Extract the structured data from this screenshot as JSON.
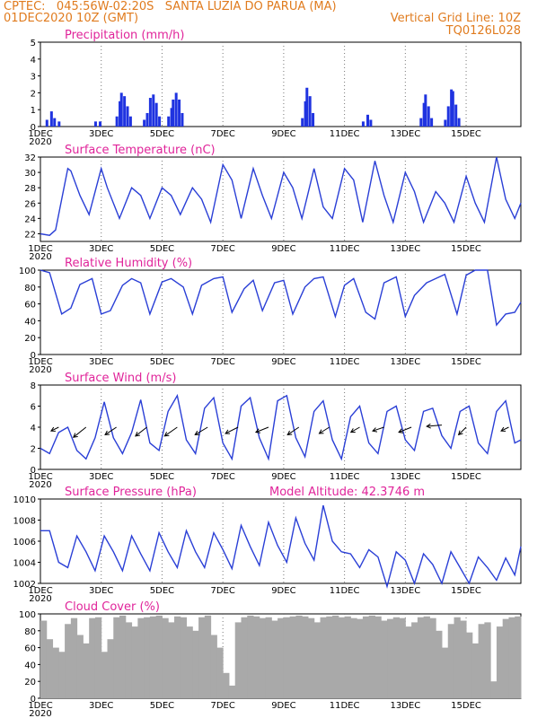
{
  "header": {
    "line1": "CPTEC:   045:56W-02:20S   SANTA LUZIA DO PARUA (MA)",
    "line2": "01DEC2020 10Z (GMT)",
    "grid_note": "Vertical Grid Line: 10Z",
    "run_code": "TQ0126L028"
  },
  "xaxis": {
    "ticks": [
      {
        "label": "1DEC",
        "day": 0
      },
      {
        "label": "3DEC",
        "day": 2
      },
      {
        "label": "5DEC",
        "day": 4
      },
      {
        "label": "7DEC",
        "day": 6
      },
      {
        "label": "9DEC",
        "day": 8
      },
      {
        "label": "11DEC",
        "day": 10
      },
      {
        "label": "13DEC",
        "day": 12
      },
      {
        "label": "15DEC",
        "day": 14
      }
    ],
    "year_label": "2020",
    "range_days": [
      0,
      15.8
    ]
  },
  "colors": {
    "line": "#2a3fd6",
    "bar": "#1f33e0",
    "cloud": "#a9a9a9",
    "title": "#e0249a",
    "header": "#e07b1e",
    "grid": "#777777"
  },
  "chart_data": [
    {
      "type": "bar",
      "id": "precip",
      "title": "Precipitation (mm/h)",
      "ylim": [
        0,
        5
      ],
      "yticks": [
        0,
        1,
        2,
        3,
        4,
        5
      ],
      "bars": [
        [
          0.2,
          0.4
        ],
        [
          0.35,
          0.9
        ],
        [
          0.45,
          0.5
        ],
        [
          0.6,
          0.3
        ],
        [
          1.8,
          0.3
        ],
        [
          1.95,
          0.3
        ],
        [
          2.5,
          0.6
        ],
        [
          2.6,
          1.5
        ],
        [
          2.65,
          2.0
        ],
        [
          2.75,
          1.8
        ],
        [
          2.85,
          1.2
        ],
        [
          2.95,
          0.6
        ],
        [
          3.4,
          0.4
        ],
        [
          3.5,
          0.8
        ],
        [
          3.6,
          1.7
        ],
        [
          3.7,
          1.9
        ],
        [
          3.8,
          1.4
        ],
        [
          3.9,
          0.6
        ],
        [
          4.2,
          0.6
        ],
        [
          4.3,
          1.1
        ],
        [
          4.35,
          1.6
        ],
        [
          4.45,
          2.0
        ],
        [
          4.55,
          1.6
        ],
        [
          4.65,
          0.8
        ],
        [
          8.6,
          0.5
        ],
        [
          8.7,
          1.5
        ],
        [
          8.75,
          2.3
        ],
        [
          8.85,
          1.8
        ],
        [
          8.95,
          0.8
        ],
        [
          10.6,
          0.3
        ],
        [
          10.75,
          0.7
        ],
        [
          10.85,
          0.4
        ],
        [
          12.5,
          0.5
        ],
        [
          12.6,
          1.4
        ],
        [
          12.65,
          1.9
        ],
        [
          12.75,
          1.2
        ],
        [
          12.85,
          0.5
        ],
        [
          13.3,
          0.4
        ],
        [
          13.4,
          1.2
        ],
        [
          13.5,
          2.2
        ],
        [
          13.55,
          2.1
        ],
        [
          13.65,
          1.3
        ],
        [
          13.75,
          0.5
        ]
      ]
    },
    {
      "type": "line",
      "id": "temp",
      "title": "Surface Temperature (nC)",
      "ylim": [
        21,
        32
      ],
      "yticks": [
        22,
        24,
        26,
        28,
        30,
        32
      ],
      "x": [
        0,
        0.3,
        0.5,
        0.9,
        1.0,
        1.3,
        1.6,
        2.0,
        2.2,
        2.6,
        3.0,
        3.3,
        3.6,
        4.0,
        4.3,
        4.6,
        5.0,
        5.3,
        5.6,
        6.0,
        6.3,
        6.6,
        7.0,
        7.3,
        7.6,
        8.0,
        8.3,
        8.6,
        9.0,
        9.3,
        9.6,
        10.0,
        10.3,
        10.6,
        11.0,
        11.3,
        11.6,
        12.0,
        12.3,
        12.6,
        13.0,
        13.3,
        13.6,
        14.0,
        14.3,
        14.6,
        15.0,
        15.3,
        15.6,
        15.8
      ],
      "y": [
        22,
        21.8,
        22.5,
        30.5,
        30.2,
        27,
        24.5,
        30.5,
        28,
        24,
        28,
        27,
        24,
        28,
        27,
        24.5,
        28,
        26.5,
        23.5,
        31,
        29,
        24,
        30.5,
        27,
        24,
        30,
        28,
        24,
        30.5,
        25.5,
        24,
        30.5,
        29,
        23.5,
        31.5,
        27,
        23.5,
        30,
        27.5,
        23.5,
        27.5,
        26,
        23.5,
        29.5,
        26,
        23.5,
        32,
        26.5,
        24,
        26
      ]
    },
    {
      "type": "line",
      "id": "rh",
      "title": "Relative Humidity (%)",
      "ylim": [
        0,
        100
      ],
      "yticks": [
        0,
        20,
        40,
        60,
        80,
        100
      ],
      "x": [
        0,
        0.3,
        0.7,
        1.0,
        1.3,
        1.7,
        2.0,
        2.3,
        2.7,
        3.0,
        3.3,
        3.6,
        4.0,
        4.3,
        4.7,
        5.0,
        5.3,
        5.7,
        6.0,
        6.3,
        6.7,
        7.0,
        7.3,
        7.7,
        8.0,
        8.3,
        8.7,
        9.0,
        9.3,
        9.7,
        10.0,
        10.3,
        10.7,
        11.0,
        11.3,
        11.7,
        12.0,
        12.3,
        12.7,
        13.0,
        13.3,
        13.7,
        14.0,
        14.3,
        14.7,
        15.0,
        15.3,
        15.6,
        15.8
      ],
      "y": [
        100,
        97,
        48,
        55,
        83,
        90,
        48,
        52,
        82,
        90,
        85,
        48,
        86,
        90,
        80,
        48,
        82,
        90,
        92,
        50,
        78,
        88,
        52,
        85,
        88,
        48,
        80,
        90,
        92,
        45,
        82,
        90,
        50,
        42,
        85,
        92,
        45,
        70,
        85,
        90,
        95,
        48,
        94,
        100,
        100,
        35,
        48,
        50,
        62
      ]
    },
    {
      "type": "line",
      "id": "wind",
      "title": "Surface Wind (m/s)",
      "ylim": [
        0,
        8
      ],
      "yticks": [
        0,
        2,
        4,
        6,
        8
      ],
      "x": [
        0,
        0.3,
        0.6,
        0.9,
        1.2,
        1.5,
        1.8,
        2.1,
        2.4,
        2.7,
        3.0,
        3.3,
        3.6,
        3.9,
        4.2,
        4.5,
        4.8,
        5.1,
        5.4,
        5.7,
        6.0,
        6.3,
        6.6,
        6.9,
        7.2,
        7.5,
        7.8,
        8.1,
        8.4,
        8.7,
        9.0,
        9.3,
        9.6,
        9.9,
        10.2,
        10.5,
        10.8,
        11.1,
        11.4,
        11.7,
        12.0,
        12.3,
        12.6,
        12.9,
        13.2,
        13.5,
        13.8,
        14.1,
        14.4,
        14.7,
        15.0,
        15.3,
        15.6,
        15.8
      ],
      "y": [
        2,
        1.5,
        3.5,
        4,
        1.8,
        1,
        3,
        6.4,
        3,
        1.5,
        3.5,
        6.6,
        2.5,
        1.8,
        5.5,
        7,
        2.8,
        1.5,
        5.8,
        6.8,
        2.5,
        1,
        6,
        6.8,
        3,
        1,
        6.5,
        7,
        3,
        1.2,
        5.5,
        6.5,
        2.8,
        1,
        5,
        6,
        2.5,
        1.5,
        5.5,
        6,
        2.8,
        1.8,
        5.5,
        5.8,
        3.2,
        2,
        5.5,
        6,
        2.5,
        1.5,
        5.5,
        6.5,
        2.5,
        2.8
      ],
      "arrows": [
        [
          0.6,
          4.0,
          -0.6,
          -0.3
        ],
        [
          1.5,
          4.0,
          -1,
          -0.8
        ],
        [
          2.5,
          4.0,
          -0.9,
          -0.6
        ],
        [
          3.5,
          4.0,
          -0.9,
          -0.7
        ],
        [
          4.5,
          4.0,
          -1,
          -0.7
        ],
        [
          5.5,
          4.0,
          -1,
          -0.6
        ],
        [
          6.5,
          4.0,
          -1,
          -0.5
        ],
        [
          7.5,
          4.0,
          -1,
          -0.4
        ],
        [
          8.5,
          4.0,
          -0.9,
          -0.6
        ],
        [
          9.5,
          4.0,
          -0.8,
          -0.5
        ],
        [
          10.5,
          4.0,
          -0.7,
          -0.4
        ],
        [
          11.3,
          4.0,
          -0.9,
          -0.3
        ],
        [
          12.2,
          4.0,
          -1,
          -0.4
        ],
        [
          13.2,
          4.2,
          -1.2,
          -0.1
        ],
        [
          14.0,
          4.0,
          -0.6,
          -0.6
        ],
        [
          15.4,
          4.0,
          -0.6,
          -0.3
        ]
      ]
    },
    {
      "type": "line",
      "id": "press",
      "title": "Surface Pressure (hPa)",
      "subtitle": "Model Altitude: 42.3746 m",
      "ylim": [
        1002,
        1010
      ],
      "yticks": [
        1002,
        1004,
        1006,
        1008,
        1010
      ],
      "x": [
        0,
        0.3,
        0.6,
        0.9,
        1.2,
        1.5,
        1.8,
        2.1,
        2.4,
        2.7,
        3.0,
        3.3,
        3.6,
        3.9,
        4.2,
        4.5,
        4.8,
        5.1,
        5.4,
        5.7,
        6.0,
        6.3,
        6.6,
        6.9,
        7.2,
        7.5,
        7.8,
        8.1,
        8.4,
        8.7,
        9.0,
        9.3,
        9.6,
        9.9,
        10.2,
        10.5,
        10.8,
        11.1,
        11.4,
        11.7,
        12.0,
        12.3,
        12.6,
        12.9,
        13.2,
        13.5,
        13.8,
        14.1,
        14.4,
        14.7,
        15.0,
        15.3,
        15.6,
        15.8
      ],
      "y": [
        1007,
        1007,
        1004,
        1003.5,
        1006.5,
        1005,
        1003.2,
        1006.5,
        1005,
        1003.2,
        1006.5,
        1004.8,
        1003.2,
        1006.8,
        1005,
        1003.5,
        1007,
        1005,
        1003.5,
        1006.8,
        1005.2,
        1003.4,
        1007.5,
        1005.5,
        1003.7,
        1007.8,
        1005.6,
        1004,
        1008.2,
        1005.8,
        1004.2,
        1009.4,
        1006,
        1005,
        1004.8,
        1003.5,
        1005.2,
        1004.5,
        1001.7,
        1005,
        1004.2,
        1002,
        1004.8,
        1003.8,
        1002,
        1005,
        1003.5,
        1002,
        1004.5,
        1003.5,
        1002.3,
        1004.4,
        1002.8,
        1005.5
      ]
    },
    {
      "type": "bar",
      "id": "cloud",
      "title": "Cloud Cover (%)",
      "ylim": [
        0,
        100
      ],
      "yticks": [
        0,
        20,
        40,
        60,
        80,
        100
      ],
      "x": [
        0,
        0.2,
        0.4,
        0.6,
        0.8,
        1.0,
        1.2,
        1.4,
        1.6,
        1.8,
        2.0,
        2.2,
        2.4,
        2.6,
        2.8,
        3.0,
        3.2,
        3.4,
        3.6,
        3.8,
        4.0,
        4.2,
        4.4,
        4.6,
        4.8,
        5.0,
        5.2,
        5.4,
        5.6,
        5.8,
        6.0,
        6.2,
        6.4,
        6.6,
        6.8,
        7.0,
        7.2,
        7.4,
        7.6,
        7.8,
        8.0,
        8.2,
        8.4,
        8.6,
        8.8,
        9.0,
        9.2,
        9.4,
        9.6,
        9.8,
        10.0,
        10.2,
        10.4,
        10.6,
        10.8,
        11.0,
        11.2,
        11.4,
        11.6,
        11.8,
        12.0,
        12.2,
        12.4,
        12.6,
        12.8,
        13.0,
        13.2,
        13.4,
        13.6,
        13.8,
        14.0,
        14.2,
        14.4,
        14.6,
        14.8,
        15.0,
        15.2,
        15.4,
        15.6
      ],
      "y": [
        92,
        70,
        60,
        55,
        88,
        95,
        75,
        65,
        95,
        96,
        55,
        70,
        96,
        98,
        90,
        85,
        95,
        96,
        97,
        98,
        95,
        90,
        97,
        96,
        85,
        80,
        96,
        98,
        75,
        60,
        30,
        15,
        90,
        96,
        98,
        97,
        95,
        96,
        92,
        95,
        96,
        97,
        98,
        97,
        95,
        90,
        96,
        97,
        98,
        96,
        97,
        95,
        94,
        97,
        98,
        97,
        92,
        94,
        96,
        95,
        85,
        90,
        96,
        97,
        95,
        80,
        60,
        88,
        96,
        92,
        78,
        65,
        88,
        90,
        20,
        85,
        94,
        96,
        97
      ]
    }
  ]
}
